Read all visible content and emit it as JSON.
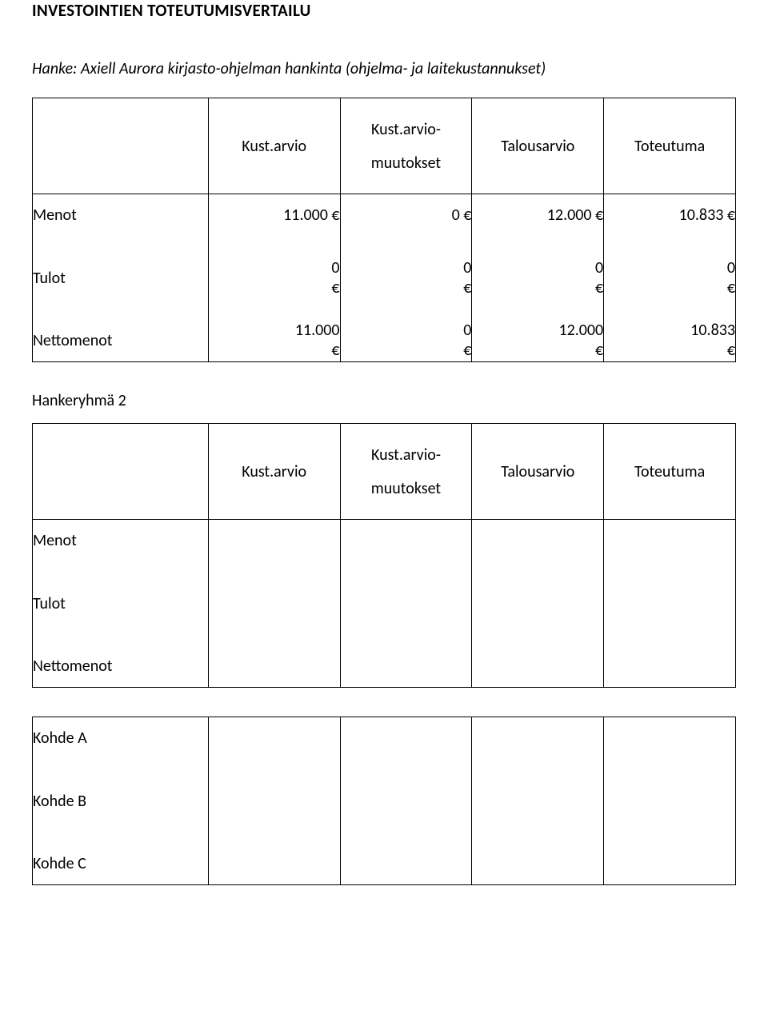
{
  "title": "INVESTOINTIEN TOTEUTUMISVERTAILU",
  "project_line": "Hanke: Axiell Aurora kirjasto-ohjelman hankinta (ohjelma- ja laitekustannukset)",
  "headers": {
    "kustarvio": "Kust.arvio",
    "kustarvio_muutokset_top": "Kust.arvio-",
    "kustarvio_muutokset_bottom": "muutokset",
    "talousarvio": "Talousarvio",
    "toteutuma": "Toteutuma"
  },
  "row_labels": {
    "menot": "Menot",
    "tulot": "Tulot",
    "nettomenot": "Nettomenot"
  },
  "table1": {
    "menot": {
      "kustarvio": "11.000 €",
      "muutokset": "0 €",
      "talousarvio": "12.000 €",
      "toteutuma": "10.833 €"
    },
    "tulot": {
      "kustarvio_num": "0",
      "kustarvio_cur": "€",
      "muutokset_num": "0",
      "muutokset_cur": "€",
      "talousarvio_num": "0",
      "talousarvio_cur": "€",
      "toteutuma_num": "0",
      "toteutuma_cur": "€"
    },
    "nettomenot": {
      "kustarvio_num": "11.000",
      "kustarvio_cur": "€",
      "muutokset_num": "0",
      "muutokset_cur": "€",
      "talousarvio_num": "12.000",
      "talousarvio_cur": "€",
      "toteutuma_num": "10.833",
      "toteutuma_cur": "€"
    }
  },
  "group2_title": "Hankeryhmä 2",
  "kohde_labels": {
    "a": "Kohde A",
    "b": "Kohde B",
    "c": "Kohde C"
  },
  "colors": {
    "text": "#000000",
    "background": "#ffffff",
    "border": "#000000"
  }
}
